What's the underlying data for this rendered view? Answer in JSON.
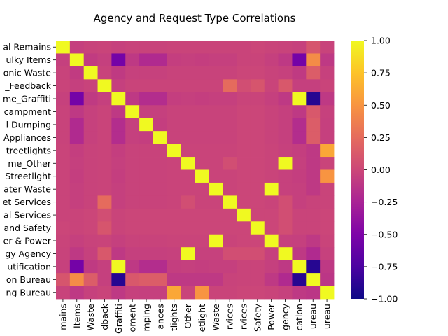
{
  "chart_data": {
    "type": "heatmap",
    "title": "Agency and Request Type Correlations",
    "labels": [
      "al Remains",
      "ulky Items",
      "onic Waste",
      "_Feedback",
      "me_Graffiti",
      "campment",
      "l Dumping",
      "Appliances",
      "treetlights",
      "me_Other",
      "Streetlight",
      "ater Waste",
      "et Services",
      "al Services",
      "and Safety",
      "er & Power",
      "gy Agency",
      "utification",
      "on Bureau",
      "ng Bureau"
    ],
    "x_labels": [
      "mains",
      "Items",
      "Waste",
      "dback",
      "Graffiti",
      "oment",
      "mping",
      "ances",
      "tlights",
      "Other",
      "etlight",
      "Waste",
      "rvices",
      "rvices",
      "Safety",
      "Power",
      "gency",
      "cation",
      "ureau",
      "ureau"
    ],
    "colorbar": {
      "colormap": "plasma",
      "range": [
        -1.0,
        1.0
      ],
      "ticks": [
        "1.00",
        "0.75",
        "0.50",
        "0.25",
        "0.00",
        "−0.25",
        "−0.50",
        "−0.75",
        "−1.00"
      ]
    },
    "values": [
      [
        1.0,
        -0.05,
        -0.03,
        -0.02,
        -0.04,
        -0.03,
        -0.03,
        -0.03,
        -0.02,
        -0.02,
        -0.02,
        -0.02,
        -0.02,
        -0.02,
        -0.01,
        -0.02,
        -0.03,
        -0.04,
        0.1,
        -0.03
      ],
      [
        -0.05,
        1.0,
        -0.08,
        -0.05,
        -0.55,
        -0.1,
        -0.2,
        -0.2,
        -0.06,
        -0.05,
        -0.06,
        -0.05,
        -0.05,
        -0.02,
        -0.02,
        -0.05,
        -0.1,
        -0.55,
        0.45,
        -0.1
      ],
      [
        -0.03,
        -0.08,
        1.0,
        -0.03,
        -0.09,
        -0.04,
        -0.04,
        -0.04,
        -0.03,
        -0.03,
        -0.03,
        -0.03,
        -0.03,
        -0.01,
        -0.01,
        -0.03,
        -0.04,
        -0.09,
        0.15,
        -0.04
      ],
      [
        -0.02,
        -0.05,
        -0.03,
        1.0,
        -0.05,
        -0.02,
        -0.02,
        -0.02,
        -0.02,
        -0.02,
        -0.02,
        -0.02,
        0.25,
        0.05,
        0.1,
        -0.02,
        0.12,
        -0.05,
        -0.05,
        -0.02
      ],
      [
        -0.04,
        -0.55,
        -0.09,
        -0.05,
        1.0,
        -0.1,
        -0.18,
        -0.18,
        -0.06,
        -0.05,
        -0.06,
        -0.05,
        -0.05,
        -0.02,
        -0.02,
        -0.05,
        -0.1,
        1.0,
        -0.9,
        -0.1
      ],
      [
        -0.03,
        -0.1,
        -0.04,
        -0.02,
        -0.1,
        1.0,
        -0.05,
        -0.05,
        -0.03,
        -0.03,
        -0.03,
        -0.03,
        -0.03,
        -0.01,
        -0.01,
        -0.03,
        -0.05,
        -0.1,
        0.12,
        -0.04
      ],
      [
        -0.03,
        -0.2,
        -0.04,
        -0.02,
        -0.18,
        -0.05,
        1.0,
        -0.06,
        -0.03,
        -0.03,
        -0.03,
        -0.03,
        -0.03,
        -0.01,
        -0.01,
        -0.03,
        -0.05,
        -0.18,
        0.15,
        -0.05
      ],
      [
        -0.03,
        -0.2,
        -0.04,
        -0.02,
        -0.18,
        -0.05,
        -0.06,
        1.0,
        -0.03,
        -0.03,
        -0.03,
        -0.03,
        -0.03,
        -0.01,
        -0.01,
        -0.03,
        -0.05,
        -0.18,
        0.15,
        -0.05
      ],
      [
        -0.02,
        -0.06,
        -0.03,
        -0.02,
        -0.06,
        -0.03,
        -0.03,
        -0.03,
        1.0,
        -0.02,
        -0.02,
        -0.02,
        -0.02,
        -0.01,
        -0.01,
        -0.02,
        -0.04,
        -0.06,
        -0.1,
        0.6
      ],
      [
        -0.02,
        -0.05,
        -0.03,
        -0.02,
        -0.05,
        -0.03,
        -0.03,
        -0.03,
        -0.02,
        1.0,
        -0.02,
        -0.02,
        0.05,
        -0.01,
        -0.01,
        -0.02,
        1.0,
        -0.05,
        -0.1,
        -0.02
      ],
      [
        -0.02,
        -0.06,
        -0.03,
        -0.02,
        -0.06,
        -0.03,
        -0.03,
        -0.03,
        -0.02,
        -0.02,
        1.0,
        -0.02,
        -0.02,
        -0.01,
        -0.01,
        -0.02,
        -0.04,
        -0.06,
        -0.1,
        0.5
      ],
      [
        -0.02,
        -0.05,
        -0.03,
        -0.02,
        -0.05,
        -0.03,
        -0.03,
        -0.03,
        -0.02,
        -0.02,
        -0.02,
        1.0,
        -0.02,
        -0.01,
        -0.01,
        1.0,
        -0.04,
        -0.05,
        -0.1,
        -0.02
      ],
      [
        -0.02,
        -0.05,
        -0.03,
        0.25,
        -0.05,
        -0.03,
        -0.03,
        -0.03,
        -0.02,
        0.05,
        -0.02,
        -0.02,
        1.0,
        -0.01,
        -0.01,
        -0.02,
        0.05,
        -0.05,
        -0.03,
        -0.02
      ],
      [
        -0.02,
        -0.02,
        -0.01,
        0.05,
        -0.02,
        -0.01,
        -0.01,
        -0.01,
        -0.01,
        -0.01,
        -0.01,
        -0.01,
        -0.01,
        1.0,
        -0.01,
        -0.01,
        0.05,
        -0.02,
        -0.02,
        -0.01
      ],
      [
        -0.01,
        -0.02,
        -0.01,
        0.1,
        -0.02,
        -0.01,
        -0.01,
        -0.01,
        -0.01,
        -0.01,
        -0.01,
        -0.01,
        -0.01,
        -0.01,
        1.0,
        -0.01,
        0.05,
        -0.02,
        -0.02,
        -0.01
      ],
      [
        -0.02,
        -0.05,
        -0.03,
        -0.02,
        -0.05,
        -0.03,
        -0.03,
        -0.03,
        -0.02,
        -0.02,
        -0.02,
        1.0,
        -0.02,
        -0.01,
        -0.01,
        1.0,
        -0.04,
        -0.05,
        -0.1,
        -0.02
      ],
      [
        -0.03,
        -0.1,
        -0.04,
        0.12,
        -0.1,
        -0.05,
        -0.05,
        -0.05,
        -0.04,
        1.0,
        -0.04,
        -0.04,
        0.05,
        0.05,
        0.05,
        -0.04,
        1.0,
        -0.1,
        -0.2,
        -0.04
      ],
      [
        -0.04,
        -0.55,
        -0.09,
        -0.05,
        1.0,
        -0.1,
        -0.18,
        -0.18,
        -0.06,
        -0.05,
        -0.06,
        -0.05,
        -0.05,
        -0.02,
        -0.02,
        -0.05,
        -0.1,
        1.0,
        -0.9,
        -0.1
      ],
      [
        0.1,
        0.45,
        0.15,
        -0.05,
        -0.9,
        0.12,
        0.15,
        0.15,
        -0.1,
        -0.1,
        -0.1,
        -0.1,
        -0.03,
        -0.02,
        -0.02,
        -0.1,
        -0.2,
        -0.9,
        1.0,
        -0.12
      ],
      [
        -0.03,
        -0.1,
        -0.04,
        -0.02,
        -0.1,
        -0.04,
        -0.05,
        -0.05,
        0.6,
        -0.02,
        0.5,
        -0.02,
        -0.02,
        -0.01,
        -0.01,
        -0.02,
        -0.04,
        -0.1,
        -0.12,
        1.0
      ]
    ]
  }
}
